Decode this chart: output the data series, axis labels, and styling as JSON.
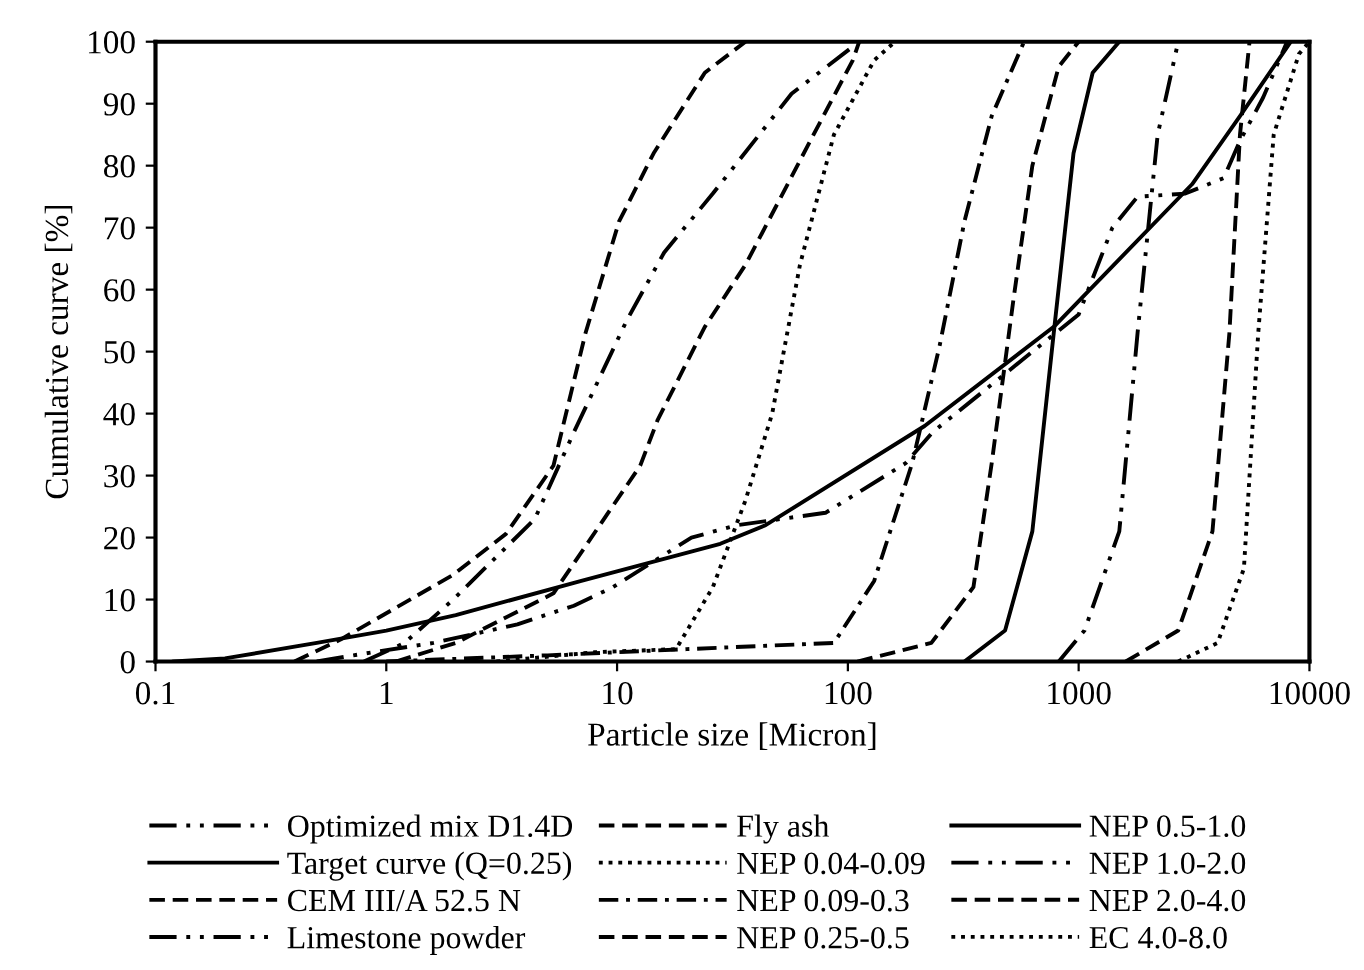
{
  "chart_data": {
    "type": "line",
    "xlabel": "Particle size [Micron]",
    "ylabel": "Cumulative curve [%]",
    "log": "x",
    "xlim": [
      0.1,
      10000
    ],
    "xticks": [
      0.1,
      1,
      10,
      100,
      1000,
      10000
    ],
    "ylim": [
      0,
      100
    ],
    "yticks": [
      0,
      10,
      20,
      30,
      40,
      50,
      60,
      70,
      80,
      90,
      100
    ],
    "grid": false,
    "legend": "bottom",
    "marker": "none",
    "series": [
      {
        "name": "Optimized mix D1.4D",
        "color": "#000000",
        "line_style": "dashdotdot",
        "x": [
          0.5,
          0.72,
          1.6,
          3.7,
          6.5,
          9.6,
          21,
          33,
          80,
          178,
          233,
          1000,
          1400,
          1800,
          2900,
          4250,
          5000,
          6300,
          8000
        ],
        "values": [
          0,
          1,
          3,
          6,
          9,
          12,
          20,
          22,
          24,
          32,
          37,
          56,
          70,
          75,
          75.5,
          78,
          84,
          91,
          100
        ]
      },
      {
        "name": "Target curve (Q=0.25)",
        "color": "#000000",
        "line_style": "solid",
        "x": [
          0.12,
          0.2,
          0.5,
          1,
          2,
          7,
          28,
          44,
          215,
          780,
          3100,
          5000,
          8300
        ],
        "values": [
          0,
          0.5,
          3,
          5,
          7.5,
          13,
          19,
          22,
          38,
          54,
          77,
          88,
          100
        ]
      },
      {
        "name": "CEM III/A 52.5 N",
        "color": "#000000",
        "line_style": "dashed",
        "x": [
          0.4,
          0.63,
          1.95,
          3.3,
          5.3,
          7.3,
          10.2,
          14.4,
          24,
          36
        ],
        "values": [
          0,
          3.5,
          14,
          20.6,
          31.6,
          53,
          71,
          82,
          95,
          100
        ]
      },
      {
        "name": "Limestone powder",
        "color": "#000000",
        "line_style": "dashdotdot",
        "x": [
          0.8,
          1.2,
          1.95,
          4.4,
          6.5,
          11,
          16,
          26,
          57,
          112
        ],
        "values": [
          0,
          3,
          10,
          23,
          37,
          55,
          66,
          75.5,
          91.6,
          100
        ]
      },
      {
        "name": "Fly ash",
        "color": "#000000",
        "line_style": "dashed",
        "x": [
          1.1,
          2,
          5.3,
          12.6,
          15,
          24,
          36,
          71,
          105,
          112
        ],
        "values": [
          0,
          3,
          11,
          31.6,
          39,
          54,
          64,
          85,
          97,
          100
        ]
      },
      {
        "name": "NEP 0.04-0.09",
        "color": "#000000",
        "line_style": "dotted",
        "x": [
          3,
          8,
          18,
          26,
          36,
          47,
          62,
          87,
          130,
          160
        ],
        "values": [
          0,
          1.5,
          2,
          12,
          26,
          40,
          64,
          85,
          97,
          100
        ]
      },
      {
        "name": "NEP 0.09-0.3",
        "color": "#000000",
        "line_style": "dashdot",
        "x": [
          1,
          5,
          20,
          87,
          130,
          190,
          250,
          320,
          420,
          580
        ],
        "values": [
          0,
          1,
          2,
          3,
          13,
          32,
          51,
          71,
          88,
          100
        ]
      },
      {
        "name": "NEP 0.25-0.5",
        "color": "#000000",
        "line_style": "dashed",
        "x": [
          110,
          230,
          350,
          420,
          520,
          630,
          820,
          1000
        ],
        "values": [
          0,
          3,
          12,
          32,
          58,
          80,
          96,
          100
        ]
      },
      {
        "name": "NEP 0.5-1.0",
        "color": "#000000",
        "line_style": "solid",
        "x": [
          320,
          480,
          630,
          780,
          950,
          1150,
          1500
        ],
        "values": [
          0,
          5,
          21,
          53,
          82,
          95,
          100
        ]
      },
      {
        "name": "NEP 1.0-2.0",
        "color": "#000000",
        "line_style": "dashdotdot",
        "x": [
          820,
          1060,
          1500,
          1800,
          2200,
          2700
        ],
        "values": [
          0,
          5,
          21,
          53,
          85,
          100
        ]
      },
      {
        "name": "NEP 2.0-4.0",
        "color": "#000000",
        "line_style": "dashed",
        "x": [
          1600,
          2700,
          3800,
          4500,
          5000,
          5500
        ],
        "values": [
          0,
          5,
          21,
          53,
          85,
          100
        ]
      },
      {
        "name": "EC 4.0-8.0",
        "color": "#000000",
        "line_style": "dotted",
        "x": [
          2700,
          4000,
          5200,
          6000,
          7000,
          9000,
          10000
        ],
        "values": [
          0,
          3,
          15,
          53,
          85,
          98,
          100
        ]
      }
    ]
  }
}
